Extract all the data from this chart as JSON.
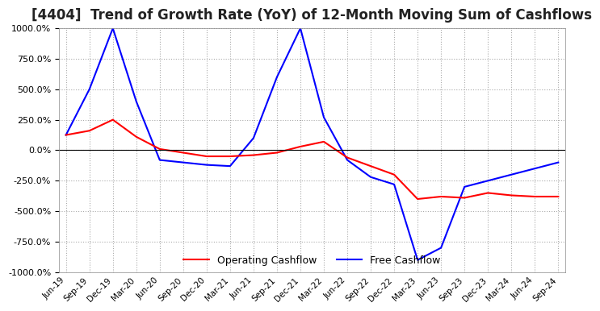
{
  "title": "[4404]  Trend of Growth Rate (YoY) of 12-Month Moving Sum of Cashflows",
  "title_fontsize": 12,
  "ylim": [
    -1000,
    1000
  ],
  "yticks": [
    -1000,
    -750,
    -500,
    -250,
    0,
    250,
    500,
    750,
    1000
  ],
  "background_color": "#ffffff",
  "grid_color": "#aaaaaa",
  "operating_color": "#ff0000",
  "free_color": "#0000ff",
  "legend_labels": [
    "Operating Cashflow",
    "Free Cashflow"
  ],
  "x_labels": [
    "Jun-19",
    "Sep-19",
    "Dec-19",
    "Mar-20",
    "Jun-20",
    "Sep-20",
    "Dec-20",
    "Mar-21",
    "Jun-21",
    "Sep-21",
    "Dec-21",
    "Mar-22",
    "Jun-22",
    "Sep-22",
    "Dec-22",
    "Mar-23",
    "Jun-23",
    "Sep-23",
    "Dec-23",
    "Mar-24",
    "Jun-24",
    "Sep-24"
  ],
  "operating_cashflow": [
    125,
    160,
    250,
    110,
    10,
    -20,
    -50,
    -50,
    -40,
    -20,
    30,
    70,
    -60,
    -130,
    -200,
    -400,
    -380,
    -390,
    -350,
    -370,
    -380,
    -380
  ],
  "free_cashflow": [
    125,
    500,
    1000,
    400,
    -80,
    -100,
    -120,
    -130,
    100,
    600,
    1000,
    270,
    -80,
    -220,
    -280,
    -900,
    -800,
    -300,
    -250,
    -200,
    -150,
    -100
  ]
}
